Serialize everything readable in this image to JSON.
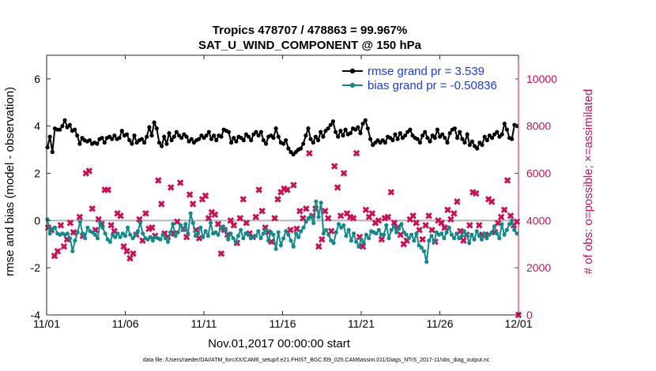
{
  "chart_data": {
    "type": "line",
    "title": "Tropics 478707 / 478863 = 99.967%",
    "subtitle": "SAT_U_WIND_COMPONENT @ 150 hPa",
    "xlabel": "Nov.01,2017 00:00:00 start",
    "ylabel": "rmse and bias (model - observation)",
    "y2label": "# of obs: o=possible; ×=assimilated",
    "footnote": "data file: /Users/raeder/DAI/ATM_forcXX/CAM6_setup/f.e21.FHIST_BGC.f09_025.CAM6assim.011/Diags_NTrS_2017-11/obs_diag_output.nc",
    "x_tick_labels": [
      "11/01",
      "11/06",
      "11/11",
      "11/16",
      "11/21",
      "11/26",
      "12/01"
    ],
    "x_tick_days": [
      0,
      5,
      10,
      15,
      20,
      25,
      30
    ],
    "xlim": [
      0,
      30
    ],
    "ylim": [
      -4,
      7
    ],
    "y_ticks": [
      -4,
      -2,
      0,
      2,
      4,
      6
    ],
    "y2lim": [
      0,
      11000
    ],
    "y2_ticks": [
      0,
      2000,
      4000,
      6000,
      8000,
      10000
    ],
    "zero_line": 0,
    "series": [
      {
        "name": "rmse",
        "legend": "rmse grand pr = 3.539",
        "color": "#000000",
        "axis": "left",
        "values": [
          3.1,
          3.55,
          2.9,
          3.9,
          3.85,
          3.85,
          4.0,
          4.25,
          3.95,
          4.05,
          3.8,
          3.85,
          3.6,
          3.25,
          3.5,
          3.4,
          3.35,
          3.4,
          3.25,
          3.3,
          3.25,
          3.45,
          3.5,
          3.3,
          3.5,
          3.55,
          3.45,
          3.6,
          3.45,
          3.5,
          3.8,
          3.6,
          3.65,
          3.4,
          3.25,
          3.6,
          3.3,
          3.4,
          3.45,
          3.3,
          3.55,
          3.95,
          3.6,
          4.15,
          3.9,
          3.3,
          3.15,
          3.55,
          3.25,
          3.7,
          3.4,
          3.55,
          3.75,
          3.6,
          3.5,
          3.65,
          3.55,
          3.35,
          3.45,
          3.3,
          3.4,
          3.45,
          3.6,
          3.5,
          3.6,
          3.75,
          3.45,
          3.6,
          3.4,
          3.6,
          3.55,
          3.85,
          3.8,
          3.75,
          3.3,
          3.5,
          3.35,
          3.55,
          3.5,
          3.4,
          3.65,
          3.55,
          3.4,
          3.65,
          3.75,
          3.6,
          3.75,
          3.4,
          3.25,
          3.55,
          3.6,
          3.5,
          3.9,
          3.55,
          3.3,
          3.25,
          3.4,
          3.05,
          2.9,
          2.8,
          2.9,
          3.0,
          3.05,
          3.25,
          3.6,
          3.9,
          3.45,
          3.3,
          3.55,
          3.4,
          3.75,
          3.55,
          3.8,
          3.9,
          4.05,
          4.2,
          3.75,
          3.55,
          3.8,
          3.6,
          3.85,
          3.65,
          3.7,
          3.9,
          3.85,
          3.95,
          3.7,
          4.1,
          4.25,
          3.9,
          3.45,
          3.2,
          3.3,
          3.4,
          3.3,
          3.4,
          3.3,
          3.55,
          3.5,
          3.4,
          3.65,
          3.45,
          3.7,
          3.5,
          3.6,
          3.75,
          3.85,
          3.6,
          3.5,
          3.45,
          3.3,
          3.6,
          3.75,
          3.5,
          3.35,
          3.6,
          3.5,
          3.85,
          3.55,
          3.65,
          3.5,
          3.3,
          3.7,
          3.85,
          3.9,
          3.5,
          3.75,
          3.45,
          3.3,
          3.65,
          3.2,
          3.35,
          3.15,
          3.05,
          3.3,
          3.2,
          3.55,
          3.4,
          3.6,
          3.5,
          3.65,
          3.75,
          3.55,
          3.65,
          4.1,
          3.85,
          3.5,
          3.45,
          4.05,
          4.0
        ]
      },
      {
        "name": "bias",
        "legend": "bias grand pr = -0.50836",
        "color": "#128a8a",
        "axis": "left",
        "values": [
          0.05,
          -0.55,
          -0.35,
          -0.3,
          -0.55,
          -0.6,
          -0.55,
          -0.6,
          -0.55,
          -0.75,
          -1.3,
          -0.85,
          -0.5,
          -0.05,
          -0.55,
          -0.75,
          -0.3,
          -0.45,
          -0.5,
          -0.6,
          -0.75,
          -0.1,
          -0.3,
          -0.55,
          -0.8,
          -0.9,
          -0.6,
          -0.7,
          -0.55,
          -0.7,
          -0.55,
          -0.65,
          -0.3,
          -0.6,
          -0.75,
          -0.6,
          -0.45,
          -0.1,
          -0.55,
          -0.75,
          -0.8,
          -0.7,
          -0.85,
          -0.7,
          -0.75,
          -0.8,
          -0.6,
          -0.75,
          -0.9,
          -0.5,
          -0.15,
          -0.65,
          -0.5,
          -0.2,
          -0.4,
          -0.15,
          -0.55,
          0.3,
          -0.1,
          -0.65,
          -0.55,
          -0.3,
          -0.7,
          -0.45,
          -0.65,
          -0.1,
          -0.55,
          -0.5,
          -0.6,
          -0.35,
          -0.25,
          -0.4,
          -0.8,
          -0.55,
          -0.75,
          -0.9,
          -0.65,
          -0.4,
          -0.75,
          -0.55,
          -0.6,
          -0.75,
          -0.7,
          -0.65,
          -0.45,
          -0.75,
          -0.55,
          -0.4,
          -0.85,
          -0.5,
          -0.6,
          -1.2,
          -0.5,
          -1.05,
          -0.75,
          -0.45,
          -0.6,
          -0.85,
          -1.1,
          -0.55,
          -0.7,
          -0.45,
          -0.3,
          -0.05,
          0.1,
          0.2,
          -0.1,
          0.8,
          0.15,
          0.75,
          -0.55,
          -0.4,
          -0.6,
          -0.85,
          -0.95,
          -0.5,
          -0.15,
          -0.3,
          -0.2,
          -0.65,
          -0.4,
          -0.85,
          -0.55,
          -0.9,
          -1.1,
          -0.8,
          -0.95,
          -0.6,
          -0.75,
          -0.45,
          -0.5,
          -0.55,
          -0.4,
          -0.6,
          -0.6,
          -0.2,
          -0.75,
          -0.4,
          -0.25,
          -0.5,
          -0.35,
          -0.15,
          -0.5,
          -0.6,
          -0.75,
          -0.6,
          -0.85,
          -0.55,
          -1.05,
          -1.15,
          -1.3,
          -1.75,
          -0.85,
          -0.65,
          -0.9,
          -0.5,
          -0.6,
          -0.55,
          -0.75,
          -0.5,
          -0.3,
          -0.6,
          -0.75,
          -0.55,
          -0.75,
          -0.65,
          -0.45,
          -0.6,
          -0.95,
          -0.6,
          -0.8,
          -0.45,
          -0.65,
          -0.8,
          -0.55,
          -0.75,
          -0.6,
          -0.5,
          -0.25,
          -0.55,
          -0.75,
          -0.15,
          -0.6,
          -0.4,
          -0.15,
          0.0,
          -0.4,
          -0.55
        ]
      },
      {
        "name": "obs_assimilated",
        "legend": "",
        "color": "#cc0f55",
        "axis": "right",
        "points": [
          [
            0.1,
            3700
          ],
          [
            0.3,
            3600
          ],
          [
            0.5,
            2500
          ],
          [
            0.7,
            2700
          ],
          [
            0.9,
            3800
          ],
          [
            1.1,
            2900
          ],
          [
            1.3,
            3200
          ],
          [
            1.5,
            3900
          ],
          [
            1.7,
            3500
          ],
          [
            2.1,
            4150
          ],
          [
            2.3,
            3350
          ],
          [
            2.5,
            6000
          ],
          [
            2.7,
            6100
          ],
          [
            2.9,
            4500
          ],
          [
            3.1,
            3600
          ],
          [
            3.3,
            4050
          ],
          [
            3.5,
            3850
          ],
          [
            3.7,
            5300
          ],
          [
            3.9,
            5300
          ],
          [
            4.1,
            3800
          ],
          [
            4.3,
            3550
          ],
          [
            4.5,
            4300
          ],
          [
            4.7,
            4200
          ],
          [
            4.9,
            2900
          ],
          [
            5.1,
            2700
          ],
          [
            5.3,
            2400
          ],
          [
            5.5,
            2600
          ],
          [
            5.7,
            3400
          ],
          [
            5.9,
            4050
          ],
          [
            6.1,
            3150
          ],
          [
            6.3,
            4300
          ],
          [
            6.5,
            3650
          ],
          [
            6.7,
            3700
          ],
          [
            6.9,
            3350
          ],
          [
            7.1,
            5700
          ],
          [
            7.3,
            4700
          ],
          [
            7.5,
            3450
          ],
          [
            7.7,
            3300
          ],
          [
            7.9,
            5400
          ],
          [
            8.1,
            3450
          ],
          [
            8.3,
            3950
          ],
          [
            8.5,
            5600
          ],
          [
            8.7,
            3650
          ],
          [
            8.9,
            3300
          ],
          [
            9.1,
            5100
          ],
          [
            9.3,
            4700
          ],
          [
            9.5,
            3600
          ],
          [
            9.7,
            3250
          ],
          [
            9.9,
            4900
          ],
          [
            10.1,
            5050
          ],
          [
            10.3,
            4100
          ],
          [
            10.5,
            4350
          ],
          [
            10.7,
            4250
          ],
          [
            10.9,
            3850
          ],
          [
            11.1,
            2600
          ],
          [
            11.3,
            3600
          ],
          [
            11.5,
            3400
          ],
          [
            11.7,
            4000
          ],
          [
            11.9,
            3800
          ],
          [
            12.1,
            3050
          ],
          [
            12.3,
            4100
          ],
          [
            12.5,
            4900
          ],
          [
            12.7,
            3900
          ],
          [
            12.9,
            3450
          ],
          [
            13.1,
            3300
          ],
          [
            13.3,
            4150
          ],
          [
            13.5,
            5300
          ],
          [
            13.7,
            4400
          ],
          [
            13.9,
            3700
          ],
          [
            14.1,
            3500
          ],
          [
            14.3,
            3100
          ],
          [
            14.5,
            4100
          ],
          [
            14.7,
            4900
          ],
          [
            14.9,
            5200
          ],
          [
            15.1,
            5350
          ],
          [
            15.3,
            5300
          ],
          [
            15.5,
            3600
          ],
          [
            15.7,
            5500
          ],
          [
            15.9,
            3650
          ],
          [
            16.1,
            4400
          ],
          [
            16.3,
            4100
          ],
          [
            16.5,
            4500
          ],
          [
            16.7,
            6850
          ],
          [
            16.9,
            4200
          ],
          [
            17.1,
            4500
          ],
          [
            17.3,
            2900
          ],
          [
            17.5,
            3200
          ],
          [
            17.7,
            4400
          ],
          [
            17.9,
            4100
          ],
          [
            18.1,
            3550
          ],
          [
            18.3,
            6300
          ],
          [
            18.5,
            5400
          ],
          [
            18.7,
            4200
          ],
          [
            18.9,
            6000
          ],
          [
            19.1,
            4300
          ],
          [
            19.3,
            4150
          ],
          [
            19.5,
            4100
          ],
          [
            19.7,
            6850
          ],
          [
            19.9,
            3300
          ],
          [
            20.1,
            2900
          ],
          [
            20.3,
            4450
          ],
          [
            20.5,
            4150
          ],
          [
            20.7,
            4300
          ],
          [
            20.9,
            3900
          ],
          [
            21.1,
            4000
          ],
          [
            21.3,
            3200
          ],
          [
            21.5,
            4100
          ],
          [
            21.7,
            4150
          ],
          [
            21.9,
            5200
          ],
          [
            22.1,
            3900
          ],
          [
            22.3,
            3700
          ],
          [
            22.5,
            3400
          ],
          [
            22.7,
            3000
          ],
          [
            22.9,
            3150
          ],
          [
            23.1,
            4050
          ],
          [
            23.3,
            4200
          ],
          [
            23.5,
            3900
          ],
          [
            23.7,
            3600
          ],
          [
            23.9,
            3200
          ],
          [
            24.1,
            3800
          ],
          [
            24.3,
            4200
          ],
          [
            24.5,
            3600
          ],
          [
            24.7,
            3100
          ],
          [
            24.9,
            4000
          ],
          [
            25.1,
            3900
          ],
          [
            25.3,
            3700
          ],
          [
            25.5,
            4450
          ],
          [
            25.7,
            4050
          ],
          [
            25.9,
            4300
          ],
          [
            26.1,
            4800
          ],
          [
            26.3,
            3550
          ],
          [
            26.5,
            3150
          ],
          [
            26.7,
            3400
          ],
          [
            26.9,
            3800
          ],
          [
            27.1,
            5200
          ],
          [
            27.3,
            5150
          ],
          [
            27.5,
            3800
          ],
          [
            27.7,
            3400
          ],
          [
            27.9,
            3400
          ],
          [
            28.1,
            4900
          ],
          [
            28.3,
            4800
          ],
          [
            28.5,
            3500
          ],
          [
            28.7,
            3900
          ],
          [
            28.9,
            4150
          ],
          [
            29.1,
            4450
          ],
          [
            29.3,
            5700
          ],
          [
            29.5,
            4200
          ],
          [
            29.7,
            3800
          ],
          [
            29.9,
            3950
          ],
          [
            30.0,
            0
          ]
        ]
      }
    ],
    "legend_position": "top-right"
  }
}
